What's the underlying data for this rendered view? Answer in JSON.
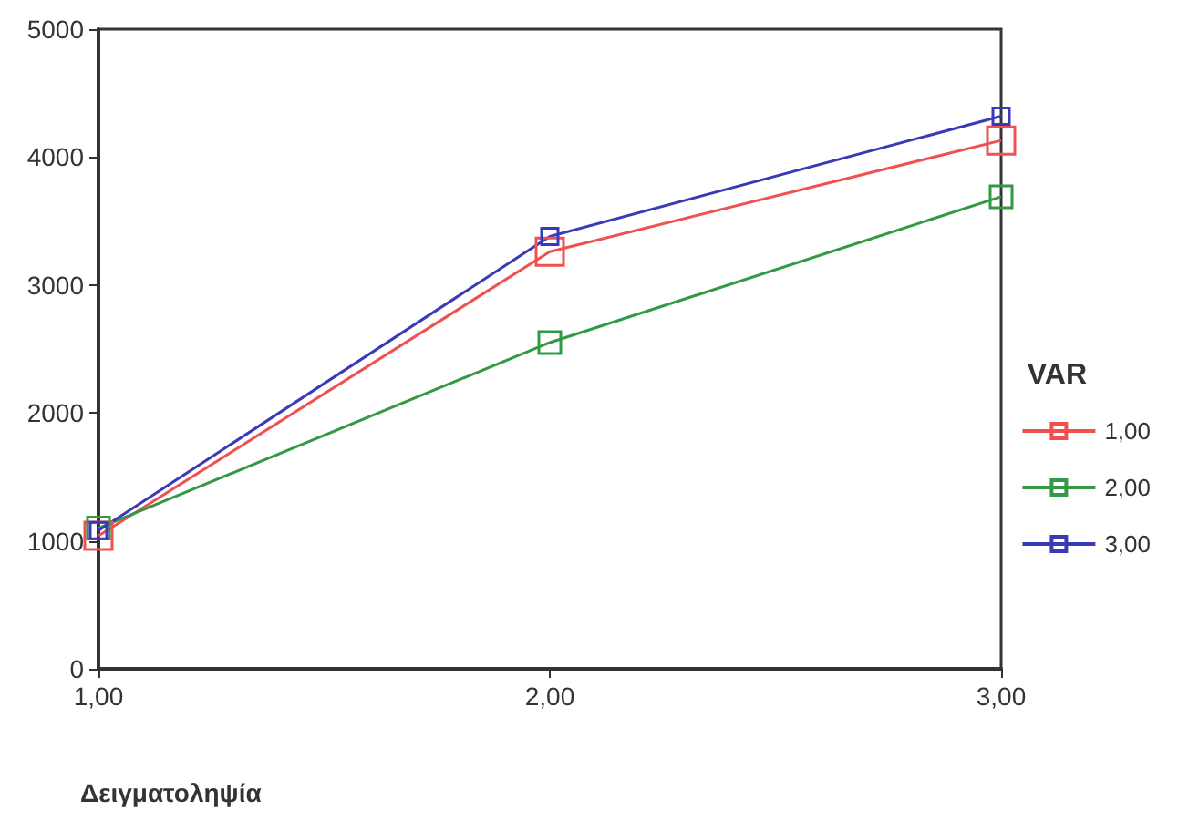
{
  "chart_data": {
    "type": "line",
    "xlabel": "Δειγματοληψία",
    "legend_title": "VAR",
    "x": [
      1,
      2,
      3
    ],
    "xlim": [
      1,
      3
    ],
    "xticks": [
      {
        "value": 1,
        "label": "1,00"
      },
      {
        "value": 2,
        "label": "2,00"
      },
      {
        "value": 3,
        "label": "3,00"
      }
    ],
    "ylim": [
      0,
      5000
    ],
    "yticks": [
      0,
      1000,
      2000,
      3000,
      4000,
      5000
    ],
    "series": [
      {
        "name": "1,00",
        "color": "#f05050",
        "values": [
          1040,
          3260,
          4130
        ]
      },
      {
        "name": "2,00",
        "color": "#339944",
        "values": [
          1100,
          2550,
          3690
        ]
      },
      {
        "name": "3,00",
        "color": "#3a3ab8",
        "values": [
          1080,
          3380,
          4320
        ]
      }
    ],
    "grid": false,
    "legend": "right",
    "marker": "square",
    "line_style": "solid"
  }
}
